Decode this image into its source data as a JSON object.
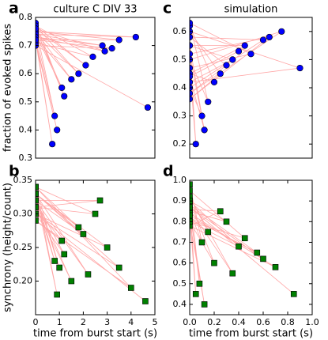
{
  "chart_data": [
    {
      "type": "scatter",
      "label": "a",
      "title": "culture C DIV 33",
      "ylabel": "fraction of evoked spikes",
      "marker": "circle",
      "color": "#0000ff",
      "line_color": "#ff8080",
      "xlim": [
        0,
        5
      ],
      "ylim": [
        0.3,
        0.8
      ],
      "yticks": [
        0.3,
        0.4,
        0.5,
        0.6,
        0.7,
        0.8
      ],
      "x": [
        0,
        1.2,
        0,
        2.1,
        0,
        0.8,
        0,
        2.8,
        0,
        1.5,
        0,
        3.5,
        0,
        0.9,
        0,
        2.4,
        0,
        1.8,
        0,
        4.2,
        0,
        1.1,
        0,
        2.9,
        0,
        0.7,
        0,
        3.2,
        0,
        4.7
      ],
      "values": [
        0.78,
        0.52,
        0.76,
        0.63,
        0.77,
        0.45,
        0.74,
        0.7,
        0.73,
        0.58,
        0.75,
        0.72,
        0.72,
        0.4,
        0.71,
        0.66,
        0.77,
        0.6,
        0.75,
        0.73,
        0.74,
        0.55,
        0.76,
        0.68,
        0.73,
        0.35,
        0.72,
        0.69,
        0.7,
        0.48
      ]
    },
    {
      "type": "scatter",
      "label": "c",
      "title": "simulation",
      "marker": "circle",
      "color": "#0000ff",
      "line_color": "#ff8080",
      "xlim": [
        0,
        1
      ],
      "ylim": [
        0.15,
        0.65
      ],
      "yticks": [
        {
          "value": 0.2,
          "label": "0.2"
        },
        0.3,
        0.4,
        0.5,
        0.6
      ],
      "x": [
        0,
        0.2,
        0,
        0.45,
        0,
        0.1,
        0,
        0.6,
        0,
        0.3,
        0,
        0.75,
        0,
        0.15,
        0,
        0.5,
        0,
        0.05,
        0,
        0.35,
        0,
        0.9,
        0,
        0.25,
        0,
        0.65,
        0,
        0.12,
        0,
        0.4
      ],
      "values": [
        0.62,
        0.42,
        0.45,
        0.55,
        0.55,
        0.3,
        0.4,
        0.57,
        0.58,
        0.48,
        0.38,
        0.6,
        0.5,
        0.35,
        0.63,
        0.52,
        0.47,
        0.2,
        0.55,
        0.5,
        0.42,
        0.47,
        0.6,
        0.45,
        0.36,
        0.58,
        0.52,
        0.25,
        0.44,
        0.53
      ]
    },
    {
      "type": "scatter",
      "label": "b",
      "ylabel": "synchrony (height/count)",
      "xlabel": "time from burst start (s)",
      "marker": "square",
      "color": "#008000",
      "line_color": "#ff8080",
      "xlim": [
        0,
        5
      ],
      "xticks": [
        0,
        1,
        2,
        3,
        4,
        5
      ],
      "ylim": [
        0.15,
        0.35
      ],
      "yticks": [
        {
          "value": 0.2,
          "label": "0.20"
        },
        0.25,
        {
          "value": 0.3,
          "label": "0.30"
        },
        0.35
      ],
      "x": [
        0,
        1.0,
        0,
        2.0,
        0,
        1.5,
        0,
        2.5,
        0,
        0.9,
        0,
        3.0,
        0,
        1.2,
        0,
        2.2,
        0,
        1.8,
        0,
        4.0,
        0,
        1.1,
        0,
        2.7,
        0,
        0.8,
        0,
        3.5,
        0,
        4.6
      ],
      "values": [
        0.34,
        0.22,
        0.33,
        0.27,
        0.32,
        0.2,
        0.31,
        0.3,
        0.34,
        0.18,
        0.33,
        0.25,
        0.3,
        0.24,
        0.32,
        0.21,
        0.33,
        0.28,
        0.34,
        0.19,
        0.29,
        0.26,
        0.31,
        0.32,
        0.32,
        0.23,
        0.33,
        0.22,
        0.3,
        0.17
      ]
    },
    {
      "type": "scatter",
      "label": "d",
      "xlabel": "time from burst start (s)",
      "marker": "square",
      "color": "#008000",
      "line_color": "#ff8080",
      "xlim": [
        0,
        1
      ],
      "xticks": [
        {
          "value": 0,
          "label": "0.0"
        },
        0.2,
        0.4,
        0.6,
        0.8,
        {
          "value": 1,
          "label": "1.0"
        }
      ],
      "ylim": [
        0.35,
        1.0
      ],
      "yticks": [
        0.4,
        0.5,
        0.6,
        0.7,
        0.8,
        0.9,
        {
          "value": 1,
          "label": "1.0"
        }
      ],
      "x": [
        0,
        0.1,
        0,
        0.3,
        0,
        0.2,
        0,
        0.45,
        0,
        0.08,
        0,
        0.55,
        0,
        0.15,
        0,
        0.35,
        0,
        0.25,
        0,
        0.7,
        0,
        0.12,
        0,
        0.4,
        0,
        0.05,
        0,
        0.6,
        0,
        0.85
      ],
      "values": [
        0.98,
        0.7,
        0.85,
        0.8,
        0.9,
        0.6,
        0.8,
        0.72,
        0.95,
        0.5,
        0.88,
        0.65,
        0.82,
        0.75,
        0.92,
        0.55,
        0.86,
        0.85,
        0.78,
        0.58,
        0.84,
        0.4,
        0.8,
        0.68,
        0.9,
        0.45,
        0.83,
        0.62,
        0.87,
        0.45
      ]
    }
  ]
}
